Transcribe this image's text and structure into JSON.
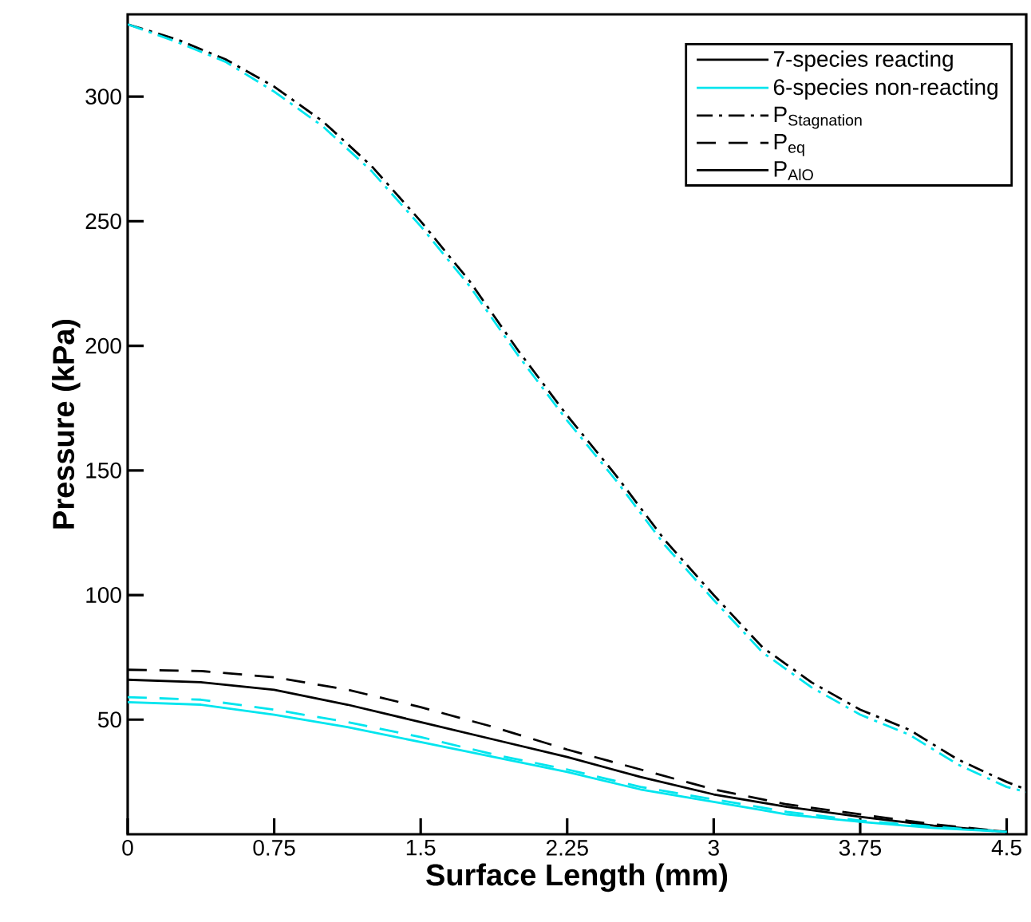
{
  "chart_data": {
    "type": "line",
    "xlabel": "Surface Length (mm)",
    "ylabel": "Pressure (kPa)",
    "xlim": [
      0,
      4.6
    ],
    "ylim": [
      4,
      333
    ],
    "xticks": [
      0,
      0.75,
      1.5,
      2.25,
      3,
      3.75,
      4.5
    ],
    "yticks": [
      50,
      100,
      150,
      200,
      250,
      300
    ],
    "legend": "top right",
    "annotations": [
      "7-species reacting",
      "6-species non-reacting"
    ],
    "series": [
      {
        "name": "\\mathrm{P}_{\\mathrm{Stagnation}}",
        "color": "#000000",
        "line_style": "dashdot",
        "x": [
          0,
          0.25,
          0.5,
          0.75,
          1,
          1.25,
          1.5,
          1.75,
          2,
          2.25,
          2.5,
          2.75,
          3,
          3.25,
          3.5,
          3.75,
          4,
          4.25,
          4.5,
          4.6
        ],
        "values": [
          329,
          323,
          315,
          304,
          290,
          272,
          250,
          226,
          198,
          172,
          148,
          122,
          100,
          79,
          65,
          54,
          46,
          34,
          25,
          22
        ]
      },
      {
        "name": "\\mathrm{P}_{\\mathrm{eq}}",
        "color": "#000000",
        "line_style": "dashed",
        "x": [
          0,
          0.375,
          0.75,
          1.125,
          1.5,
          1.875,
          2.25,
          2.625,
          3,
          3.375,
          3.75,
          4.125,
          4.5
        ],
        "values": [
          70,
          69.5,
          67,
          62,
          55,
          47,
          38,
          30,
          22,
          16,
          12,
          8,
          5
        ]
      },
      {
        "name": "\\mathrm{P}_{\\mathrm{AlO}}",
        "color": "#000000",
        "line_style": "solid",
        "x": [
          0,
          0.375,
          0.75,
          1.125,
          1.5,
          1.875,
          2.25,
          2.625,
          3,
          3.375,
          3.75,
          4.125,
          4.5
        ],
        "values": [
          66,
          65,
          62,
          56,
          49,
          42,
          35,
          27,
          20,
          15,
          11,
          7.5,
          5
        ]
      },
      {
        "color": "#00e5ee",
        "line_style": "dashdot",
        "x": [
          0,
          0.25,
          0.5,
          0.75,
          1,
          1.25,
          1.5,
          1.75,
          2,
          2.25,
          2.5,
          2.75,
          3,
          3.25,
          3.5,
          3.75,
          4,
          4.25,
          4.5,
          4.6
        ],
        "values": [
          329,
          322,
          314,
          302,
          288,
          270,
          248,
          224,
          196,
          170,
          146,
          120,
          98,
          77,
          63,
          52,
          44,
          32,
          23,
          21
        ]
      },
      {
        "color": "#00e5ee",
        "line_style": "dashed",
        "x": [
          0,
          0.375,
          0.75,
          1.125,
          1.5,
          1.875,
          2.25,
          2.625,
          3,
          3.375,
          3.75,
          4.125,
          4.5
        ],
        "values": [
          59,
          58,
          54,
          49,
          43,
          36,
          30,
          23,
          18,
          13,
          9.5,
          7,
          5
        ]
      },
      {
        "color": "#00e5ee",
        "line_style": "solid",
        "x": [
          0,
          0.375,
          0.75,
          1.125,
          1.5,
          1.875,
          2.25,
          2.625,
          3,
          3.375,
          3.75,
          4.125,
          4.5
        ],
        "values": [
          57,
          56,
          52,
          47,
          41,
          35,
          29,
          22,
          17,
          12,
          9,
          6.5,
          5
        ]
      }
    ]
  }
}
